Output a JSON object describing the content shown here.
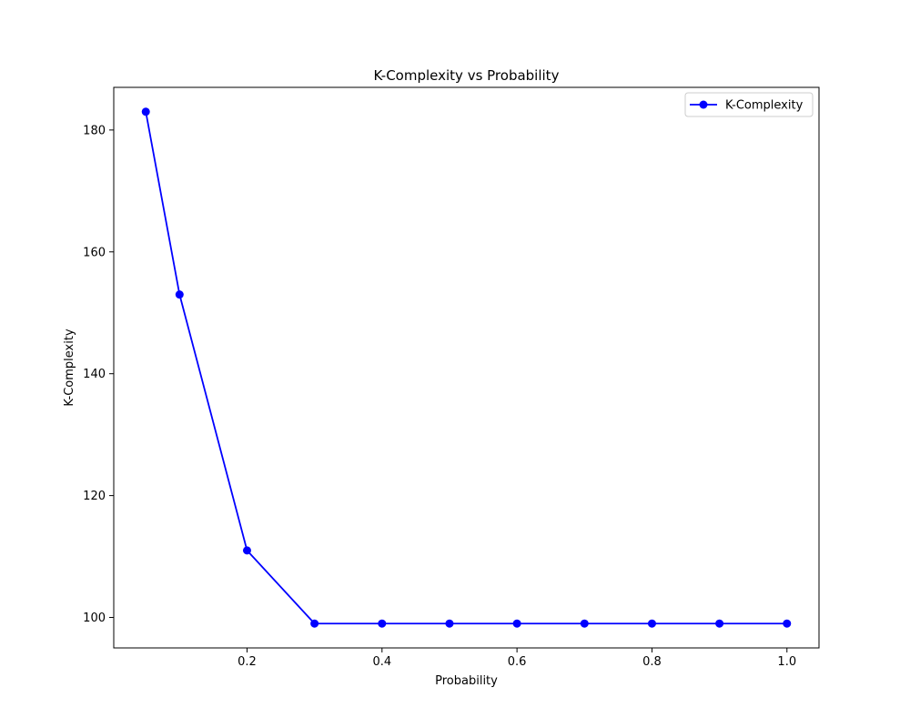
{
  "chart_data": {
    "type": "line",
    "title": "K-Complexity vs Probability",
    "xlabel": "Probability",
    "ylabel": "K-Complexity",
    "xlim": [
      0.0025,
      1.0475
    ],
    "ylim": [
      95.0,
      187.0
    ],
    "x_ticks": [
      0.2,
      0.4,
      0.6,
      0.8,
      1.0
    ],
    "x_tick_labels": [
      "0.2",
      "0.4",
      "0.6",
      "0.8",
      "1.0"
    ],
    "y_ticks": [
      100,
      120,
      140,
      160,
      180
    ],
    "y_tick_labels": [
      "100",
      "120",
      "140",
      "160",
      "180"
    ],
    "grid": false,
    "legend": {
      "position": "top-right"
    },
    "series": [
      {
        "name": "K-Complexity",
        "color": "#0000ff",
        "marker": "circle",
        "x": [
          0.05,
          0.1,
          0.2,
          0.3,
          0.4,
          0.5,
          0.6,
          0.7,
          0.8,
          0.9,
          1.0
        ],
        "y": [
          183,
          153,
          111,
          99,
          99,
          99,
          99,
          99,
          99,
          99,
          99
        ]
      }
    ]
  }
}
